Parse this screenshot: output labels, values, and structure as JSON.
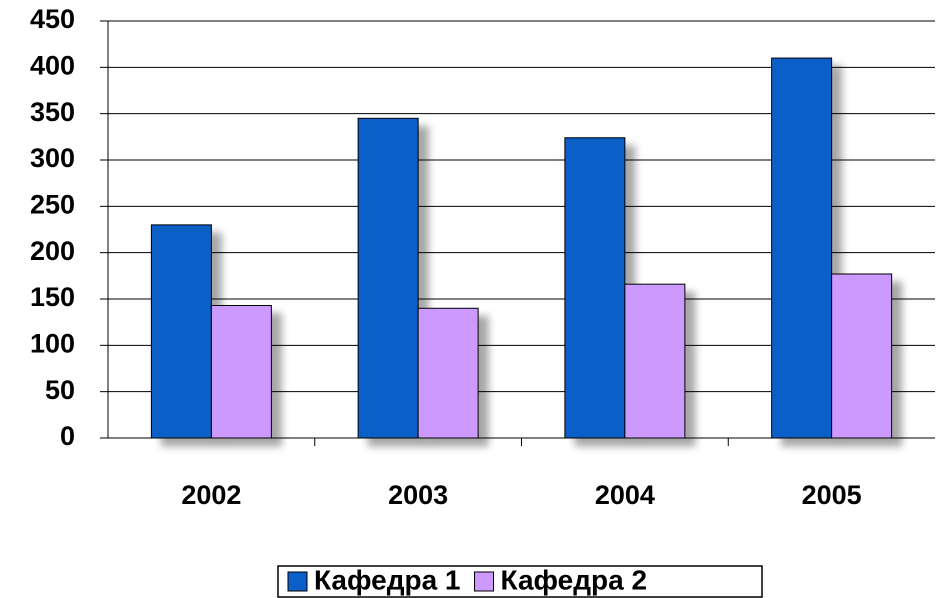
{
  "chart_data": {
    "type": "bar",
    "categories": [
      "2002",
      "2003",
      "2004",
      "2005"
    ],
    "series": [
      {
        "name": "Кафедра 1",
        "color": "#0b5fc8",
        "values": [
          230,
          345,
          324,
          410
        ]
      },
      {
        "name": "Кафедра 2",
        "color": "#cc99ff",
        "values": [
          143,
          140,
          166,
          177
        ]
      }
    ],
    "ylim": [
      0,
      450
    ],
    "yticks": [
      0,
      50,
      100,
      150,
      200,
      250,
      300,
      350,
      400,
      450
    ],
    "grid": true,
    "legend": "bottom"
  }
}
